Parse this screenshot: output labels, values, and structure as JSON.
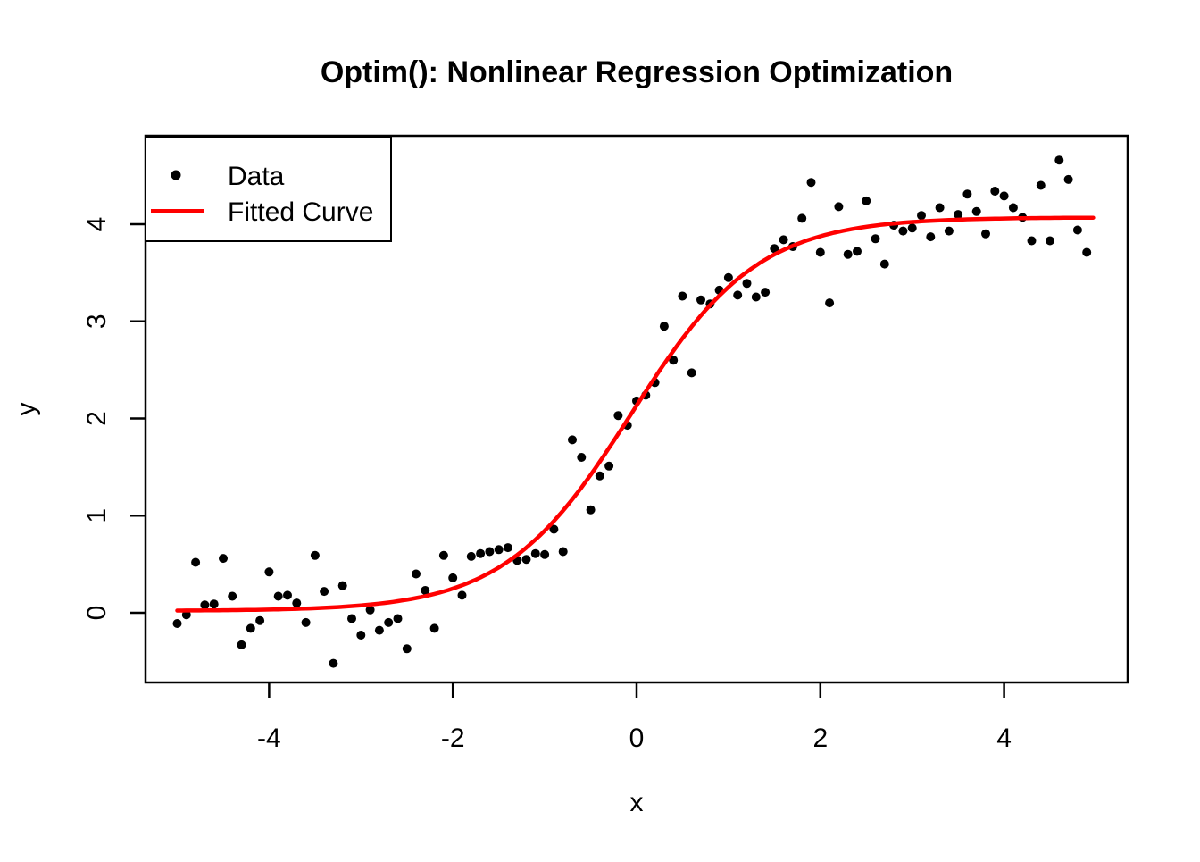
{
  "chart_data": {
    "type": "scatter",
    "title": "Optim(): Nonlinear Regression Optimization",
    "xlabel": "x",
    "ylabel": "y",
    "xlim": [
      -5.345,
      5.345
    ],
    "ylim": [
      -0.717,
      4.91
    ],
    "x_ticks": [
      -4,
      -2,
      0,
      2,
      4
    ],
    "y_ticks": [
      0,
      1,
      2,
      3,
      4
    ],
    "grid": false,
    "legend_position": "topleft",
    "background_color": "#ffffff",
    "series": [
      {
        "name": "Data",
        "type": "scatter",
        "color": "#000000",
        "marker": "filled-circle",
        "points": [
          [
            -5.0,
            -0.11
          ],
          [
            -4.9,
            -0.02
          ],
          [
            -4.8,
            0.52
          ],
          [
            -4.7,
            0.08
          ],
          [
            -4.6,
            0.09
          ],
          [
            -4.5,
            0.56
          ],
          [
            -4.4,
            0.17
          ],
          [
            -4.3,
            -0.33
          ],
          [
            -4.2,
            -0.16
          ],
          [
            -4.1,
            -0.08
          ],
          [
            -4.0,
            0.42
          ],
          [
            -3.9,
            0.17
          ],
          [
            -3.8,
            0.18
          ],
          [
            -3.7,
            0.1
          ],
          [
            -3.6,
            -0.1
          ],
          [
            -3.5,
            0.59
          ],
          [
            -3.4,
            0.22
          ],
          [
            -3.3,
            -0.52
          ],
          [
            -3.2,
            0.28
          ],
          [
            -3.1,
            -0.06
          ],
          [
            -3.0,
            -0.23
          ],
          [
            -2.9,
            0.03
          ],
          [
            -2.8,
            -0.18
          ],
          [
            -2.7,
            -0.1
          ],
          [
            -2.6,
            -0.06
          ],
          [
            -2.5,
            -0.37
          ],
          [
            -2.4,
            0.4
          ],
          [
            -2.3,
            0.23
          ],
          [
            -2.2,
            -0.16
          ],
          [
            -2.1,
            0.59
          ],
          [
            -2.0,
            0.36
          ],
          [
            -1.9,
            0.18
          ],
          [
            -1.8,
            0.58
          ],
          [
            -1.7,
            0.61
          ],
          [
            -1.6,
            0.63
          ],
          [
            -1.5,
            0.65
          ],
          [
            -1.4,
            0.67
          ],
          [
            -1.3,
            0.54
          ],
          [
            -1.2,
            0.55
          ],
          [
            -1.1,
            0.61
          ],
          [
            -1.0,
            0.6
          ],
          [
            -0.9,
            0.86
          ],
          [
            -0.8,
            0.63
          ],
          [
            -0.7,
            1.78
          ],
          [
            -0.6,
            1.6
          ],
          [
            -0.5,
            1.06
          ],
          [
            -0.4,
            1.41
          ],
          [
            -0.3,
            1.51
          ],
          [
            -0.2,
            2.03
          ],
          [
            -0.1,
            1.93
          ],
          [
            0.0,
            2.18
          ],
          [
            0.1,
            2.24
          ],
          [
            0.2,
            2.37
          ],
          [
            0.3,
            2.95
          ],
          [
            0.4,
            2.6
          ],
          [
            0.5,
            3.26
          ],
          [
            0.6,
            2.47
          ],
          [
            0.7,
            3.22
          ],
          [
            0.8,
            3.18
          ],
          [
            0.9,
            3.32
          ],
          [
            1.0,
            3.45
          ],
          [
            1.1,
            3.27
          ],
          [
            1.2,
            3.39
          ],
          [
            1.3,
            3.25
          ],
          [
            1.4,
            3.3
          ],
          [
            1.5,
            3.75
          ],
          [
            1.6,
            3.84
          ],
          [
            1.7,
            3.77
          ],
          [
            1.8,
            4.06
          ],
          [
            1.9,
            4.43
          ],
          [
            2.0,
            3.71
          ],
          [
            2.1,
            3.19
          ],
          [
            2.2,
            4.18
          ],
          [
            2.3,
            3.69
          ],
          [
            2.4,
            3.72
          ],
          [
            2.5,
            4.24
          ],
          [
            2.6,
            3.85
          ],
          [
            2.7,
            3.59
          ],
          [
            2.8,
            3.99
          ],
          [
            2.9,
            3.93
          ],
          [
            3.0,
            3.96
          ],
          [
            3.1,
            4.09
          ],
          [
            3.2,
            3.87
          ],
          [
            3.3,
            4.17
          ],
          [
            3.4,
            3.93
          ],
          [
            3.5,
            4.1
          ],
          [
            3.6,
            4.31
          ],
          [
            3.7,
            4.13
          ],
          [
            3.8,
            3.9
          ],
          [
            3.9,
            4.34
          ],
          [
            4.0,
            4.29
          ],
          [
            4.1,
            4.17
          ],
          [
            4.2,
            4.07
          ],
          [
            4.3,
            3.83
          ],
          [
            4.4,
            4.4
          ],
          [
            4.5,
            3.83
          ],
          [
            4.6,
            4.66
          ],
          [
            4.7,
            4.46
          ],
          [
            4.8,
            3.94
          ],
          [
            4.9,
            3.71
          ]
        ]
      },
      {
        "name": "Fitted Curve",
        "type": "line",
        "color": "#FF0000",
        "model": "logistic",
        "params": {
          "A": 4.05,
          "k": 1.45,
          "x0": -0.06,
          "offset": 0.02
        },
        "x_range": [
          -5.0,
          4.97
        ]
      }
    ],
    "legend": [
      {
        "label": "Data",
        "marker": "point",
        "color": "#000000"
      },
      {
        "label": "Fitted Curve",
        "marker": "line",
        "color": "#FF0000"
      }
    ]
  }
}
